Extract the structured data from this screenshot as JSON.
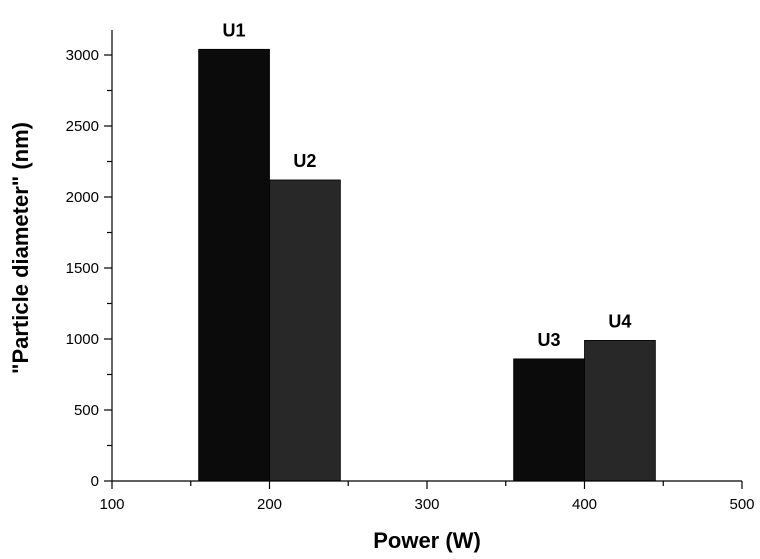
{
  "chart_data": {
    "type": "bar",
    "title": "",
    "xlabel": "Power (W)",
    "ylabel": "\"Particle diameter\" (nm)",
    "xlim": [
      100,
      500
    ],
    "ylim": [
      0,
      3200
    ],
    "x_ticks": [
      100,
      200,
      300,
      400,
      500
    ],
    "x_tick_labels": [
      "100",
      "200",
      "300",
      "400",
      "500"
    ],
    "y_ticks": [
      0,
      500,
      1000,
      1500,
      2000,
      2500,
      3000
    ],
    "y_tick_labels": [
      "0",
      "500",
      "1000",
      "1500",
      "2000",
      "2500",
      "3000"
    ],
    "grid": false,
    "legend": "none",
    "bars": [
      {
        "label": "U1",
        "x_start": 155,
        "x_end": 200,
        "value": 3040,
        "color": "#0b0b0b"
      },
      {
        "label": "U2",
        "x_start": 200,
        "x_end": 245,
        "value": 2120,
        "color": "#282828"
      },
      {
        "label": "U3",
        "x_start": 355,
        "x_end": 400,
        "value": 860,
        "color": "#0b0b0b"
      },
      {
        "label": "U4",
        "x_start": 400,
        "x_end": 445,
        "value": 990,
        "color": "#282828"
      }
    ]
  }
}
